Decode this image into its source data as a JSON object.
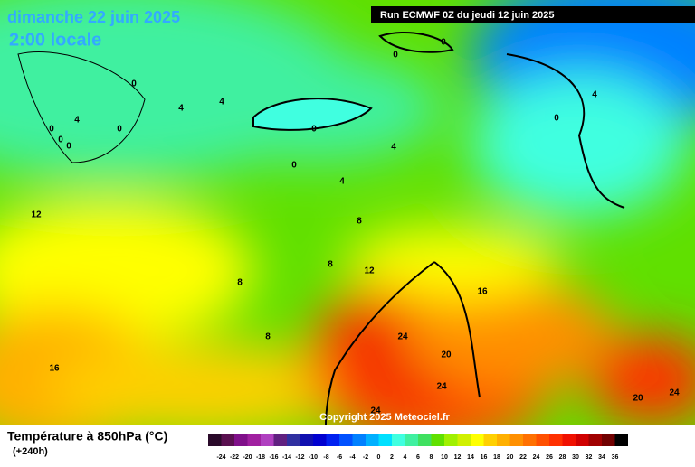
{
  "header": {
    "date": "dimanche 22 juin 2025",
    "time": "2:00 locale",
    "run": "Run ECMWF 0Z du jeudi 12 juin 2025"
  },
  "map": {
    "copyright": "Copyright 2025 Meteociel.fr",
    "contour_labels": [
      "0",
      "0",
      "0",
      "0",
      "0",
      "0",
      "4",
      "4",
      "4",
      "0",
      "0",
      "0",
      "4",
      "4",
      "12",
      "8",
      "8",
      "8",
      "12",
      "8",
      "16",
      "16",
      "24",
      "20",
      "24",
      "24",
      "20",
      "24",
      "0",
      "4"
    ]
  },
  "legend": {
    "title": "Température à 850hPa (°C)",
    "subtitle": "(+240h)",
    "colors": [
      "#2a0a2a",
      "#5a1050",
      "#80108a",
      "#a020a0",
      "#b040c0",
      "#602080",
      "#3030a0",
      "#1010b0",
      "#0000d0",
      "#0020f0",
      "#0050ff",
      "#0080ff",
      "#00b0ff",
      "#00e0ff",
      "#40ffe0",
      "#40f0a0",
      "#40e060",
      "#60e000",
      "#a0f000",
      "#d0f000",
      "#ffff00",
      "#ffd000",
      "#ffb000",
      "#ff9000",
      "#ff7000",
      "#ff5000",
      "#ff3000",
      "#f01000",
      "#d00000",
      "#a00000",
      "#700000",
      "#000000"
    ],
    "ticks": [
      "-24",
      "-22",
      "-20",
      "-18",
      "-16",
      "-14",
      "-12",
      "-10",
      "-8",
      "-6",
      "-4",
      "-2",
      "0",
      "2",
      "4",
      "6",
      "8",
      "10",
      "12",
      "14",
      "16",
      "18",
      "20",
      "22",
      "24",
      "26",
      "28",
      "30",
      "32",
      "34",
      "36"
    ]
  }
}
